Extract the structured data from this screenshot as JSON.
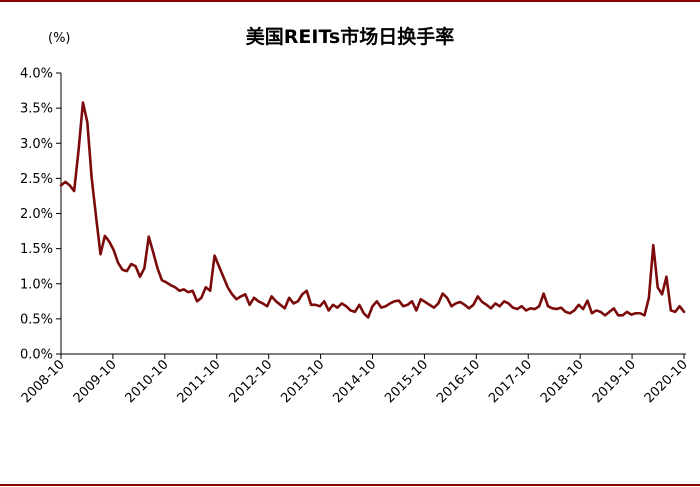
{
  "chart_data": {
    "type": "line",
    "title": "美国REITs市场日换手率",
    "unit_label": "(%)",
    "ylim": [
      0,
      4.0
    ],
    "y_ticks": [
      "0.0%",
      "0.5%",
      "1.0%",
      "1.5%",
      "2.0%",
      "2.5%",
      "3.0%",
      "3.5%",
      "4.0%"
    ],
    "y_tick_values": [
      0,
      0.5,
      1.0,
      1.5,
      2.0,
      2.5,
      3.0,
      3.5,
      4.0
    ],
    "x_ticks": [
      "2008-10",
      "2009-10",
      "2010-10",
      "2011-10",
      "2012-10",
      "2013-10",
      "2014-10",
      "2015-10",
      "2016-10",
      "2017-10",
      "2018-10",
      "2019-10",
      "2020-10"
    ],
    "x_start": "2008-10",
    "x_end": "2020-10",
    "line_color": "#7B0A0A",
    "series": [
      {
        "values": [
          2.4,
          2.45,
          2.4,
          2.32,
          2.9,
          3.58,
          3.3,
          2.5,
          1.95,
          1.42,
          1.68,
          1.6,
          1.48,
          1.3,
          1.2,
          1.18,
          1.28,
          1.25,
          1.1,
          1.22,
          1.67,
          1.45,
          1.22,
          1.05,
          1.02,
          0.98,
          0.95,
          0.9,
          0.92,
          0.88,
          0.9,
          0.75,
          0.8,
          0.95,
          0.9,
          1.4,
          1.25,
          1.1,
          0.95,
          0.85,
          0.78,
          0.82,
          0.85,
          0.7,
          0.8,
          0.75,
          0.72,
          0.68,
          0.82,
          0.75,
          0.7,
          0.65,
          0.8,
          0.72,
          0.75,
          0.85,
          0.9,
          0.7,
          0.7,
          0.68,
          0.75,
          0.62,
          0.7,
          0.66,
          0.72,
          0.68,
          0.62,
          0.6,
          0.7,
          0.58,
          0.52,
          0.68,
          0.75,
          0.66,
          0.68,
          0.72,
          0.75,
          0.76,
          0.68,
          0.7,
          0.75,
          0.62,
          0.78,
          0.74,
          0.7,
          0.66,
          0.72,
          0.86,
          0.8,
          0.68,
          0.72,
          0.74,
          0.7,
          0.65,
          0.7,
          0.82,
          0.74,
          0.7,
          0.65,
          0.72,
          0.68,
          0.75,
          0.72,
          0.66,
          0.64,
          0.68,
          0.62,
          0.65,
          0.64,
          0.68,
          0.86,
          0.68,
          0.65,
          0.64,
          0.66,
          0.6,
          0.58,
          0.62,
          0.7,
          0.64,
          0.76,
          0.58,
          0.62,
          0.6,
          0.55,
          0.6,
          0.65,
          0.55,
          0.55,
          0.6,
          0.56,
          0.58,
          0.58,
          0.55,
          0.8,
          1.55,
          0.95,
          0.85,
          1.1,
          0.62,
          0.6,
          0.68,
          0.6
        ]
      }
    ],
    "grid": false,
    "legend": "none"
  }
}
